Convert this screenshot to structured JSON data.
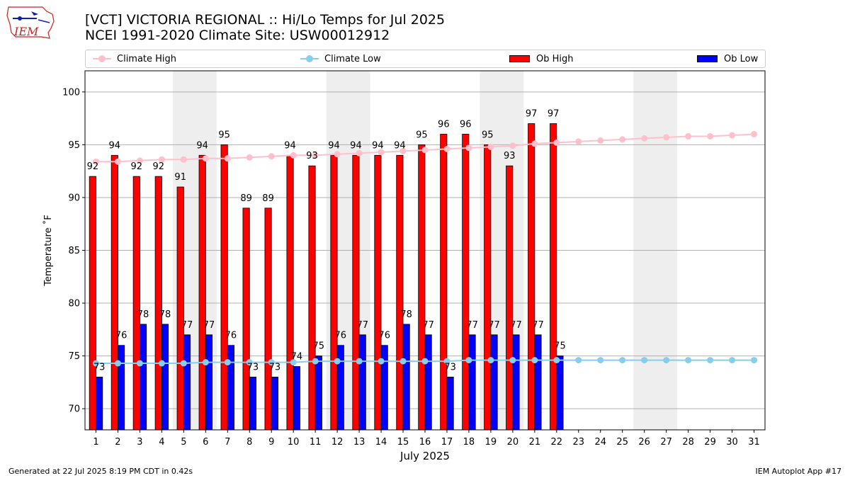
{
  "header": {
    "title_line1": "[VCT] VICTORIA REGIONAL :: Hi/Lo Temps for Jul 2025",
    "title_line2": "NCEI 1991-2020 Climate Site: USW00012912"
  },
  "logo": {
    "text": "IEM",
    "icon": "iem-iowa-logo"
  },
  "footer": {
    "left": "Generated at 22 Jul 2025 8:19 PM CDT in 0.42s",
    "right": "IEM Autoplot App #17"
  },
  "legend": {
    "placement": "top, above plot",
    "items": [
      {
        "label": "Climate High",
        "kind": "line",
        "color": "#ffc0cb"
      },
      {
        "label": "Climate Low",
        "kind": "line",
        "color": "#87ceeb"
      },
      {
        "label": "Ob High",
        "kind": "bar",
        "color": "#ff0000"
      },
      {
        "label": "Ob Low",
        "kind": "bar",
        "color": "#0000ff"
      }
    ]
  },
  "chart_data": {
    "type": "bar",
    "xlabel": "July 2025",
    "ylabel": "Temperature ˚F",
    "ylim": [
      68,
      102
    ],
    "yticks": [
      70,
      75,
      80,
      85,
      90,
      95,
      100
    ],
    "grid": "horizontal",
    "days": [
      1,
      2,
      3,
      4,
      5,
      6,
      7,
      8,
      9,
      10,
      11,
      12,
      13,
      14,
      15,
      16,
      17,
      18,
      19,
      20,
      21,
      22,
      23,
      24,
      25,
      26,
      27,
      28,
      29,
      30,
      31
    ],
    "weekend_shading": [
      [
        5,
        6
      ],
      [
        12,
        13
      ],
      [
        19,
        20
      ],
      [
        26,
        27
      ]
    ],
    "series": [
      {
        "name": "Ob High",
        "kind": "bar",
        "color": "#ff0000",
        "values": [
          92,
          94,
          92,
          92,
          91,
          94,
          95,
          89,
          89,
          94,
          93,
          94,
          94,
          94,
          94,
          95,
          96,
          96,
          95,
          93,
          97,
          97
        ]
      },
      {
        "name": "Ob Low",
        "kind": "bar",
        "color": "#0000ff",
        "values": [
          73,
          76,
          78,
          78,
          77,
          77,
          76,
          73,
          73,
          74,
          75,
          76,
          77,
          76,
          78,
          77,
          73,
          77,
          77,
          77,
          77,
          75
        ]
      },
      {
        "name": "Climate High",
        "kind": "line",
        "color": "#ffc0cb",
        "values": [
          93.4,
          93.4,
          93.5,
          93.6,
          93.6,
          93.7,
          93.7,
          93.8,
          93.9,
          94.0,
          94.0,
          94.1,
          94.2,
          94.3,
          94.4,
          94.5,
          94.6,
          94.7,
          94.8,
          94.9,
          95.1,
          95.2,
          95.3,
          95.4,
          95.5,
          95.6,
          95.7,
          95.8,
          95.8,
          95.9,
          96.0
        ]
      },
      {
        "name": "Climate Low",
        "kind": "line",
        "color": "#87ceeb",
        "values": [
          74.3,
          74.3,
          74.3,
          74.3,
          74.3,
          74.4,
          74.4,
          74.4,
          74.4,
          74.4,
          74.5,
          74.5,
          74.5,
          74.5,
          74.5,
          74.5,
          74.5,
          74.6,
          74.6,
          74.6,
          74.6,
          74.6,
          74.6,
          74.6,
          74.6,
          74.6,
          74.6,
          74.6,
          74.6,
          74.6,
          74.6
        ]
      }
    ]
  }
}
